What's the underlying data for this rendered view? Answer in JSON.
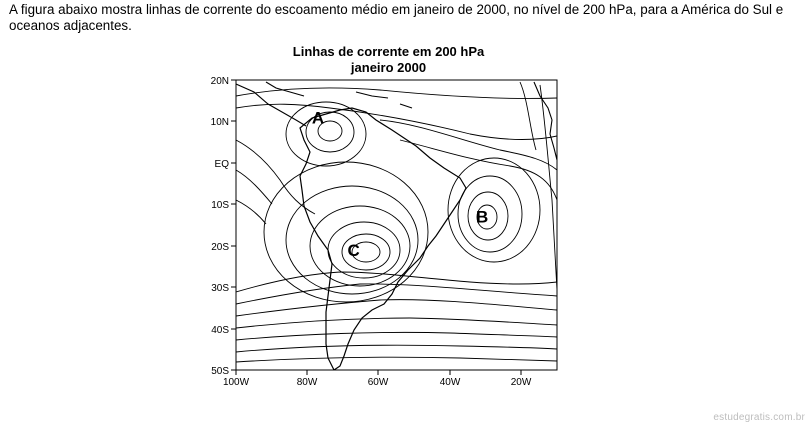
{
  "intro_text": "A figura abaixo mostra linhas de corrente do escoamento médio em janeiro de 2000, no nível de 200 hPa, para a América do Sul e oceanos adjacentes.",
  "figure": {
    "title_line1": "Linhas de corrente em 200 hPa",
    "title_line2": "janeiro 2000",
    "lat_labels": [
      "20N",
      "10N",
      "EQ",
      "10S",
      "20S",
      "30S",
      "40S",
      "50S"
    ],
    "lon_labels": [
      "100W",
      "80W",
      "60W",
      "40W",
      "20W"
    ],
    "centers": [
      {
        "label": "A",
        "lon": -77,
        "lat": 11
      },
      {
        "label": "B",
        "lon": -31,
        "lat": -13
      },
      {
        "label": "C",
        "lon": -67,
        "lat": -21
      }
    ]
  },
  "watermark": "estudegratis.com.br"
}
